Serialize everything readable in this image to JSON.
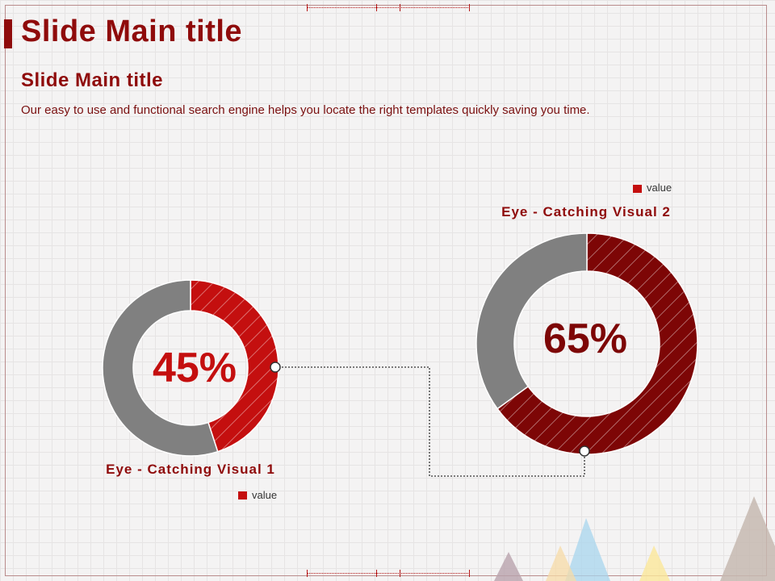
{
  "slide": {
    "main_title": "Slide Main title",
    "sub_title": "Slide Main title",
    "description": "Our easy to use and functional search engine helps you locate the right templates quickly saving you time."
  },
  "colors": {
    "title": "#8f0b0b",
    "visual1_value": "#c40f0f",
    "visual2_value": "#7d0606",
    "remainder": "#808080"
  },
  "chart_data": [
    {
      "type": "pie",
      "title": "Eye - Catching Visual 1",
      "center_label": "45%",
      "legend": [
        "value"
      ],
      "values": [
        45,
        55
      ]
    },
    {
      "type": "pie",
      "title": "Eye - Catching Visual 2",
      "center_label": "65%",
      "legend": [
        "value"
      ],
      "values": [
        65,
        35
      ]
    }
  ]
}
